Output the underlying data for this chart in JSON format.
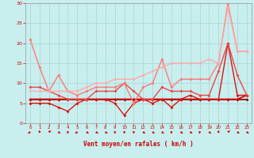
{
  "xlabel": "Vent moyen/en rafales ( km/h )",
  "xlim_min": -0.5,
  "xlim_max": 23.5,
  "ylim_min": 0,
  "ylim_max": 30,
  "yticks": [
    0,
    5,
    10,
    15,
    20,
    25,
    30
  ],
  "xticks": [
    0,
    1,
    2,
    3,
    4,
    5,
    6,
    7,
    8,
    9,
    10,
    11,
    12,
    13,
    14,
    15,
    16,
    17,
    18,
    19,
    20,
    21,
    22,
    23
  ],
  "bg_color": "#c8eeee",
  "grid_color": "#aad4d4",
  "lines": [
    {
      "x": [
        0,
        1,
        2,
        3,
        4,
        5,
        6,
        7,
        8,
        9,
        10,
        11,
        12,
        13,
        14,
        15,
        16,
        17,
        18,
        19,
        20,
        21,
        22,
        23
      ],
      "y": [
        6,
        6,
        6,
        6,
        6,
        6,
        6,
        6,
        6,
        6,
        6,
        6,
        6,
        6,
        6,
        6,
        6,
        6,
        6,
        6,
        6,
        6,
        6,
        6
      ],
      "color": "#990000",
      "lw": 1.3,
      "ms": 2.0
    },
    {
      "x": [
        0,
        1,
        2,
        3,
        4,
        5,
        6,
        7,
        8,
        9,
        10,
        11,
        12,
        13,
        14,
        15,
        16,
        17,
        18,
        19,
        20,
        21,
        22,
        23
      ],
      "y": [
        6,
        6,
        6,
        6,
        6,
        6,
        6,
        6,
        6,
        6,
        6,
        6,
        6,
        6,
        6,
        6,
        6,
        6,
        6,
        6,
        6,
        6,
        6,
        7
      ],
      "color": "#cc0000",
      "lw": 1.3,
      "ms": 2.0
    },
    {
      "x": [
        0,
        1,
        2,
        3,
        4,
        5,
        6,
        7,
        8,
        9,
        10,
        11,
        12,
        13,
        14,
        15,
        16,
        17,
        18,
        19,
        20,
        21,
        22,
        23
      ],
      "y": [
        5,
        5,
        5,
        4,
        3,
        5,
        6,
        6,
        6,
        5,
        2,
        5,
        6,
        5,
        6,
        4,
        6,
        7,
        6,
        6,
        6,
        20,
        7,
        7
      ],
      "color": "#dd1111",
      "lw": 1.0,
      "ms": 2.0
    },
    {
      "x": [
        0,
        1,
        2,
        3,
        4,
        5,
        6,
        7,
        8,
        9,
        10,
        11,
        12,
        13,
        14,
        15,
        16,
        17,
        18,
        19,
        20,
        21,
        22,
        23
      ],
      "y": [
        9,
        9,
        8,
        7,
        6,
        6,
        6,
        8,
        8,
        8,
        10,
        8,
        6,
        6,
        9,
        8,
        8,
        8,
        7,
        7,
        13,
        20,
        12,
        7
      ],
      "color": "#ee4444",
      "lw": 1.0,
      "ms": 2.0
    },
    {
      "x": [
        0,
        1,
        2,
        3,
        4,
        5,
        6,
        7,
        8,
        9,
        10,
        11,
        12,
        13,
        14,
        15,
        16,
        17,
        18,
        19,
        20,
        21,
        22,
        23
      ],
      "y": [
        21,
        14,
        8,
        12,
        8,
        7,
        8,
        9,
        9,
        9,
        10,
        5,
        9,
        10,
        16,
        9,
        11,
        11,
        11,
        11,
        15,
        30,
        18,
        18
      ],
      "color": "#ff7777",
      "lw": 1.0,
      "ms": 2.0
    },
    {
      "x": [
        0,
        1,
        2,
        3,
        4,
        5,
        6,
        7,
        8,
        9,
        10,
        11,
        12,
        13,
        14,
        15,
        16,
        17,
        18,
        19,
        20,
        21,
        22,
        23
      ],
      "y": [
        8,
        8,
        8,
        8,
        8,
        8,
        9,
        10,
        10,
        11,
        11,
        11,
        12,
        13,
        14,
        15,
        15,
        15,
        15,
        16,
        15,
        29,
        18,
        18
      ],
      "color": "#ffaaaa",
      "lw": 1.0,
      "ms": 2.0
    }
  ],
  "wind_angles": [
    225,
    90,
    45,
    315,
    270,
    225,
    315,
    315,
    315,
    270,
    270,
    270,
    315,
    315,
    315,
    270,
    315,
    315,
    270,
    315,
    90,
    45,
    315,
    315
  ]
}
